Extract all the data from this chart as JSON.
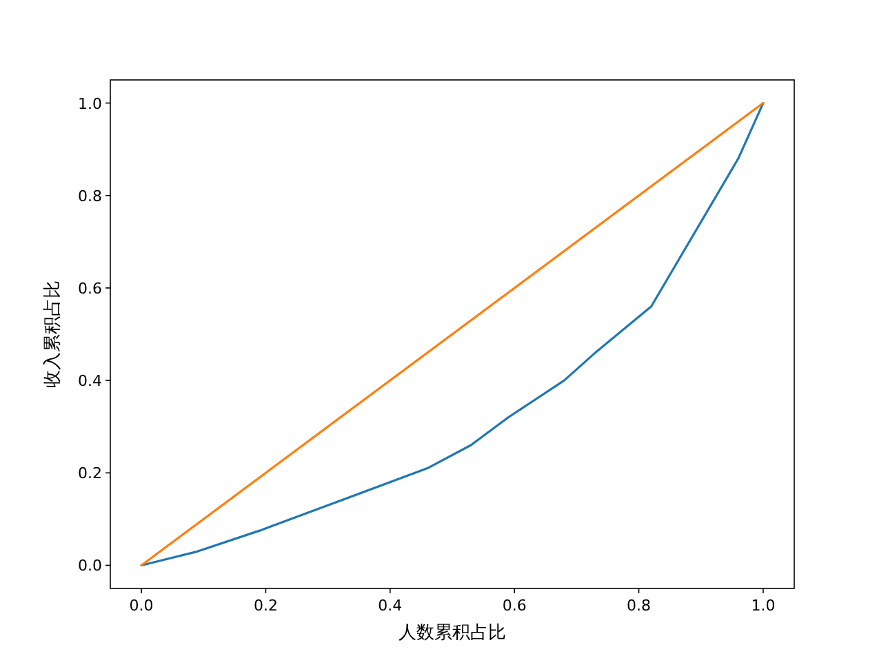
{
  "chart_data": {
    "type": "line",
    "xlabel": "人数累积占比",
    "ylabel": "收入累积占比",
    "xlim": [
      -0.05,
      1.05
    ],
    "ylim": [
      -0.05,
      1.05
    ],
    "xticks": [
      {
        "value": 0,
        "label": "0.0"
      },
      {
        "value": 0.2,
        "label": "0.2"
      },
      {
        "value": 0.4,
        "label": "0.4"
      },
      {
        "value": 0.6,
        "label": "0.6"
      },
      {
        "value": 0.8,
        "label": "0.8"
      },
      {
        "value": 1,
        "label": "1.0"
      }
    ],
    "yticks": [
      {
        "value": 0,
        "label": "0.0"
      },
      {
        "value": 0.2,
        "label": "0.2"
      },
      {
        "value": 0.4,
        "label": "0.4"
      },
      {
        "value": 0.6,
        "label": "0.6"
      },
      {
        "value": 0.8,
        "label": "0.8"
      },
      {
        "value": 1,
        "label": "1.0"
      }
    ],
    "grid": false,
    "series": [
      {
        "color": "#1f77b4",
        "x": [
          0,
          0.09,
          0.19,
          0.3,
          0.46,
          0.53,
          0.59,
          0.68,
          0.73,
          0.82,
          0.96,
          1
        ],
        "values": [
          0,
          0.03,
          0.075,
          0.13,
          0.21,
          0.26,
          0.32,
          0.4,
          0.46,
          0.56,
          0.88,
          1
        ]
      },
      {
        "color": "#ff7f0e",
        "x": [
          0,
          1
        ],
        "values": [
          0,
          1
        ]
      }
    ]
  }
}
